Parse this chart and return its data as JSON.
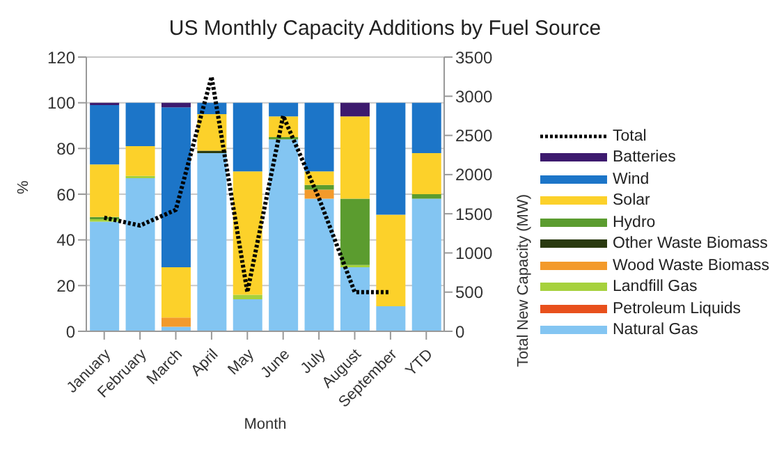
{
  "chart_data": {
    "type": "bar",
    "title": "US Monthly Capacity Additions by Fuel Source",
    "xlabel": "Month",
    "ylabel": "%",
    "y2label": "Total New Capacity (MW)",
    "categories": [
      "January",
      "February",
      "March",
      "April",
      "May",
      "June",
      "July",
      "August",
      "September",
      "YTD"
    ],
    "stacked": true,
    "ylim": [
      0,
      120
    ],
    "yticks": [
      0,
      20,
      40,
      60,
      80,
      100,
      120
    ],
    "y2lim": [
      0,
      3500
    ],
    "y2ticks": [
      0,
      500,
      1000,
      1500,
      2000,
      2500,
      3000,
      3500
    ],
    "grid": "y",
    "legend": "right",
    "series": [
      {
        "name": "Natural Gas",
        "color": "#83c5f2",
        "values": [
          48,
          67,
          2,
          78,
          14,
          84,
          58,
          28,
          11,
          58
        ]
      },
      {
        "name": "Petroleum Liquids",
        "color": "#e8501c",
        "values": [
          0,
          0,
          0,
          0,
          0,
          0,
          0,
          0,
          0,
          0
        ]
      },
      {
        "name": "Landfill Gas",
        "color": "#a6d13c",
        "values": [
          1,
          1,
          0,
          0,
          2,
          0,
          0,
          1,
          0,
          0
        ]
      },
      {
        "name": "Wood Waste Biomass",
        "color": "#f39a2b",
        "values": [
          0,
          0,
          4,
          0,
          0,
          0,
          4,
          0,
          0,
          0
        ]
      },
      {
        "name": "Other Waste Biomass",
        "color": "#2a3a10",
        "values": [
          0,
          0,
          0,
          1,
          0,
          0,
          0,
          0,
          0,
          0
        ]
      },
      {
        "name": "Hydro",
        "color": "#5b9c2f",
        "values": [
          1,
          0,
          0,
          0,
          0,
          1,
          2,
          29,
          0,
          2
        ]
      },
      {
        "name": "Solar",
        "color": "#fcd12a",
        "values": [
          23,
          13,
          22,
          16,
          54,
          9,
          6,
          36,
          40,
          18
        ]
      },
      {
        "name": "Wind",
        "color": "#1c75c8",
        "values": [
          26,
          19,
          70,
          5,
          30,
          6,
          30,
          0,
          49,
          22
        ]
      },
      {
        "name": "Batteries",
        "color": "#3d1a6e",
        "values": [
          1,
          0,
          2,
          0,
          0,
          0,
          0,
          6,
          0,
          0
        ]
      },
      {
        "name": "Total",
        "type": "line",
        "axis": "y2",
        "color": "#000000",
        "line_style": "dotted",
        "values": [
          1450,
          1350,
          1550,
          3250,
          500,
          2750,
          1700,
          500,
          500,
          null
        ]
      }
    ]
  }
}
